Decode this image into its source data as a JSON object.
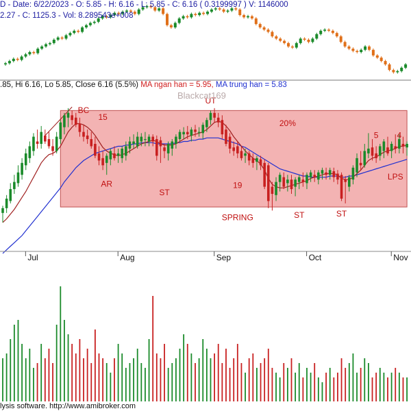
{
  "header": {
    "line1": "D - Date: 6/22/2023 - O: 5.85 - H: 6.16 - L: 5.85 - C: 6.16 ( 0.3199997 ) V: 1146000",
    "line2": "2.27 - C: 1125.3 - Vol: 8.289543e+008",
    "line3_ohlc": ".85, Hi 6.16, Lo 5.85, Close 6.16 (5.5%)",
    "line3_ma_short": "MA ngan han = 5.95,",
    "line3_ma_long": "MA trung han = 5.83"
  },
  "watermark": "Blackcat169",
  "footer": "lysis software. http://www.amibroker.com",
  "colors": {
    "up": "#1a8a2a",
    "down": "#c82020",
    "ma_short": "#a02020",
    "ma_long": "#2030d0",
    "zone": "#f3b3b3",
    "zone_border": "#c05050"
  },
  "chart_data": [
    {
      "type": "line",
      "name": "index-overlay",
      "x": [
        0,
        1,
        2,
        3,
        4,
        5,
        6,
        7,
        8,
        9,
        10,
        11,
        12,
        13,
        14,
        15,
        16,
        17,
        18,
        19,
        20,
        21,
        22,
        23,
        24,
        25,
        26,
        27,
        28,
        29,
        30,
        31,
        32,
        33,
        34,
        35,
        36,
        37,
        38,
        39,
        40,
        41,
        42,
        43,
        44,
        45,
        46,
        47,
        48,
        49,
        50,
        51,
        52,
        53,
        54,
        55,
        56,
        57,
        58,
        59,
        60,
        61,
        62,
        63,
        64,
        65,
        66,
        67,
        68,
        69,
        70,
        71,
        72,
        73,
        74,
        75,
        76,
        77,
        78,
        79,
        80,
        81,
        82,
        83,
        84,
        85,
        86,
        87,
        88,
        89,
        90,
        91,
        92,
        93,
        94,
        95,
        96,
        97,
        98,
        99
      ],
      "values": [
        1084,
        1086,
        1088,
        1087,
        1090,
        1092,
        1094,
        1093,
        1097,
        1099,
        1101,
        1102,
        1105,
        1107,
        1106,
        1109,
        1111,
        1113,
        1112,
        1116,
        1118,
        1120,
        1121,
        1124,
        1126,
        1125,
        1127,
        1129,
        1128,
        1130,
        1131,
        1130,
        1128,
        1132,
        1134,
        1135,
        1134,
        1131,
        1133,
        1128,
        1118,
        1116,
        1120,
        1124,
        1126,
        1125,
        1128,
        1127,
        1129,
        1128,
        1130,
        1132,
        1133,
        1132,
        1130,
        1131,
        1133,
        1132,
        1127,
        1125,
        1126,
        1124,
        1119,
        1116,
        1114,
        1112,
        1108,
        1106,
        1104,
        1102,
        1099,
        1098,
        1102,
        1106,
        1105,
        1103,
        1106,
        1110,
        1113,
        1114,
        1113,
        1111,
        1108,
        1103,
        1099,
        1097,
        1095,
        1094,
        1096,
        1099,
        1096,
        1091,
        1089,
        1086,
        1083,
        1078,
        1076,
        1077,
        1080,
        1083
      ]
    },
    {
      "type": "candlestick",
      "name": "price",
      "x_ticks": [
        "Jul",
        "Aug",
        "Sep",
        "Oct",
        "Nov"
      ],
      "x_tick_index": [
        7,
        31,
        56,
        80,
        102
      ],
      "zone": {
        "from_index": 15,
        "to_index": 105,
        "top": 6.16,
        "bottom": 5.35
      },
      "annotations": [
        {
          "text": "BC",
          "index": 21,
          "price": 6.14
        },
        {
          "text": "15",
          "index": 26,
          "price": 6.08
        },
        {
          "text": "AR",
          "index": 27,
          "price": 5.52
        },
        {
          "text": "ST",
          "index": 42,
          "price": 5.45
        },
        {
          "text": "UT",
          "index": 54,
          "price": 6.22
        },
        {
          "text": "19",
          "index": 61,
          "price": 5.51
        },
        {
          "text": "SPRING",
          "index": 61,
          "price": 5.24
        },
        {
          "text": "20%",
          "index": 74,
          "price": 6.03
        },
        {
          "text": "ST",
          "index": 77,
          "price": 5.26
        },
        {
          "text": "ST",
          "index": 88,
          "price": 5.27
        },
        {
          "text": "5",
          "index": 97,
          "price": 5.93
        },
        {
          "text": "4",
          "index": 103,
          "price": 5.93
        },
        {
          "text": "LPS",
          "index": 102,
          "price": 5.58
        }
      ],
      "open": [
        5.3,
        5.34,
        5.4,
        5.5,
        5.55,
        5.62,
        5.7,
        5.76,
        5.82,
        5.9,
        5.88,
        5.95,
        5.92,
        5.86,
        5.82,
        5.92,
        6.02,
        6.1,
        6.12,
        6.1,
        6.05,
        5.98,
        5.95,
        5.92,
        5.88,
        5.8,
        5.76,
        5.72,
        5.75,
        5.8,
        5.78,
        5.76,
        5.78,
        5.84,
        5.88,
        5.86,
        5.9,
        5.92,
        5.9,
        5.94,
        5.92,
        5.91,
        5.85,
        5.8,
        5.84,
        5.88,
        5.92,
        5.96,
        5.98,
        5.95,
        6.0,
        5.98,
        5.97,
        6.02,
        6.08,
        6.14,
        6.1,
        6.08,
        6.0,
        5.94,
        5.85,
        5.86,
        5.82,
        5.78,
        5.8,
        5.76,
        5.73,
        5.75,
        5.72,
        5.7,
        5.52,
        5.45,
        5.56,
        5.6,
        5.55,
        5.58,
        5.52,
        5.56,
        5.58,
        5.55,
        5.6,
        5.62,
        5.58,
        5.63,
        5.64,
        5.62,
        5.65,
        5.63,
        5.62,
        5.58,
        5.52,
        5.58,
        5.64,
        5.72,
        5.7,
        5.8,
        5.85,
        5.8,
        5.78,
        5.82,
        5.85,
        5.82,
        5.86,
        5.84,
        5.88,
        5.85
      ],
      "high": [
        5.36,
        5.45,
        5.55,
        5.62,
        5.7,
        5.76,
        5.84,
        5.9,
        5.97,
        6.0,
        6.03,
        6.0,
        5.98,
        5.92,
        5.98,
        6.08,
        6.14,
        6.18,
        6.16,
        6.14,
        6.1,
        6.04,
        6.0,
        5.98,
        5.94,
        5.86,
        5.82,
        5.8,
        5.84,
        5.86,
        5.84,
        5.86,
        5.9,
        5.94,
        5.96,
        5.98,
        5.97,
        5.98,
        5.96,
        5.96,
        5.95,
        5.94,
        5.88,
        5.9,
        5.92,
        5.96,
        6.0,
        6.02,
        6.03,
        6.02,
        6.04,
        6.02,
        6.06,
        6.1,
        6.16,
        6.18,
        6.14,
        6.12,
        6.04,
        5.97,
        5.9,
        5.9,
        5.86,
        5.84,
        5.82,
        5.8,
        5.78,
        5.78,
        5.75,
        5.72,
        5.56,
        5.6,
        5.64,
        5.64,
        5.62,
        5.62,
        5.6,
        5.62,
        5.64,
        5.64,
        5.66,
        5.66,
        5.66,
        5.68,
        5.68,
        5.68,
        5.68,
        5.66,
        5.64,
        5.61,
        5.62,
        5.7,
        5.8,
        5.82,
        5.88,
        5.97,
        5.92,
        5.86,
        5.88,
        5.92,
        5.94,
        5.9,
        5.96,
        5.96,
        5.94,
        5.9
      ],
      "low": [
        5.22,
        5.3,
        5.38,
        5.46,
        5.52,
        5.58,
        5.66,
        5.72,
        5.78,
        5.84,
        5.84,
        5.88,
        5.84,
        5.78,
        5.8,
        5.88,
        5.96,
        6.02,
        6.04,
        6.02,
        5.94,
        5.9,
        5.88,
        5.84,
        5.76,
        5.7,
        5.66,
        5.62,
        5.7,
        5.74,
        5.72,
        5.72,
        5.74,
        5.8,
        5.84,
        5.84,
        5.86,
        5.86,
        5.86,
        5.86,
        5.74,
        5.72,
        5.76,
        5.74,
        5.78,
        5.84,
        5.9,
        5.92,
        5.92,
        5.9,
        5.94,
        5.94,
        5.92,
        5.98,
        6.04,
        6.06,
        6.02,
        5.92,
        5.86,
        5.8,
        5.78,
        5.76,
        5.74,
        5.72,
        5.7,
        5.68,
        5.66,
        5.66,
        5.5,
        5.34,
        5.32,
        5.4,
        5.48,
        5.5,
        5.48,
        5.46,
        5.44,
        5.5,
        5.52,
        5.5,
        5.56,
        5.56,
        5.54,
        5.58,
        5.58,
        5.58,
        5.56,
        5.54,
        5.4,
        5.38,
        5.48,
        5.54,
        5.6,
        5.66,
        5.68,
        5.76,
        5.74,
        5.72,
        5.74,
        5.76,
        5.78,
        5.76,
        5.8,
        5.8,
        5.8,
        5.78
      ],
      "close": [
        5.34,
        5.42,
        5.5,
        5.56,
        5.64,
        5.72,
        5.8,
        5.86,
        5.94,
        5.88,
        5.98,
        5.9,
        5.86,
        5.82,
        5.94,
        6.06,
        6.12,
        6.14,
        6.08,
        6.04,
        5.98,
        5.94,
        5.92,
        5.86,
        5.78,
        5.74,
        5.7,
        5.78,
        5.82,
        5.76,
        5.8,
        5.84,
        5.86,
        5.9,
        5.9,
        5.94,
        5.94,
        5.92,
        5.94,
        5.9,
        5.78,
        5.86,
        5.82,
        5.88,
        5.9,
        5.94,
        5.98,
        5.98,
        5.96,
        6.0,
        5.98,
        5.98,
        6.04,
        6.08,
        6.14,
        6.1,
        6.06,
        5.96,
        5.88,
        5.84,
        5.82,
        5.8,
        5.76,
        5.8,
        5.74,
        5.72,
        5.76,
        5.7,
        5.52,
        5.4,
        5.46,
        5.56,
        5.62,
        5.52,
        5.58,
        5.5,
        5.58,
        5.6,
        5.56,
        5.62,
        5.64,
        5.6,
        5.64,
        5.66,
        5.62,
        5.66,
        5.6,
        5.58,
        5.42,
        5.56,
        5.6,
        5.68,
        5.76,
        5.7,
        5.82,
        5.84,
        5.78,
        5.76,
        5.86,
        5.9,
        5.8,
        5.88,
        5.84,
        5.92,
        5.86,
        5.88
      ]
    },
    {
      "type": "line",
      "name": "ma-short",
      "values": [
        5.22,
        5.25,
        5.29,
        5.33,
        5.38,
        5.43,
        5.48,
        5.54,
        5.6,
        5.66,
        5.72,
        5.76,
        5.79,
        5.8,
        5.82,
        5.86,
        5.92,
        5.98,
        6.02,
        6.05,
        6.05,
        6.04,
        6.02,
        5.99,
        5.95,
        5.9,
        5.85,
        5.82,
        5.8,
        5.79,
        5.78,
        5.79,
        5.8,
        5.82,
        5.84,
        5.86,
        5.88,
        5.89,
        5.9,
        5.91,
        5.9,
        5.88,
        5.87,
        5.87,
        5.87,
        5.88,
        5.9,
        5.92,
        5.94,
        5.95,
        5.96,
        5.97,
        5.98,
        6.0,
        6.03,
        6.06,
        6.07,
        6.06,
        6.03,
        5.99,
        5.94,
        5.9,
        5.86,
        5.82,
        5.79,
        5.76,
        5.74,
        5.71,
        5.66,
        5.59,
        5.54,
        5.52,
        5.51,
        5.51,
        5.52,
        5.53,
        5.54,
        5.55,
        5.56,
        5.57,
        5.59,
        5.6,
        5.61,
        5.62,
        5.63,
        5.63,
        5.63,
        5.62,
        5.59,
        5.58,
        5.58,
        5.6,
        5.63,
        5.66,
        5.7,
        5.74,
        5.76,
        5.77,
        5.79,
        5.81,
        5.82,
        5.83,
        5.84,
        5.86,
        5.86,
        5.87
      ]
    },
    {
      "type": "line",
      "name": "ma-long",
      "values": [
        4.96,
        4.99,
        5.02,
        5.05,
        5.08,
        5.11,
        5.15,
        5.19,
        5.23,
        5.27,
        5.31,
        5.35,
        5.39,
        5.43,
        5.47,
        5.51,
        5.56,
        5.6,
        5.64,
        5.68,
        5.71,
        5.74,
        5.76,
        5.78,
        5.8,
        5.81,
        5.82,
        5.83,
        5.84,
        5.85,
        5.86,
        5.86,
        5.87,
        5.87,
        5.88,
        5.88,
        5.89,
        5.89,
        5.89,
        5.89,
        5.88,
        5.88,
        5.88,
        5.88,
        5.88,
        5.89,
        5.89,
        5.9,
        5.9,
        5.91,
        5.91,
        5.92,
        5.92,
        5.93,
        5.93,
        5.93,
        5.93,
        5.92,
        5.91,
        5.9,
        5.89,
        5.88,
        5.86,
        5.85,
        5.83,
        5.81,
        5.79,
        5.77,
        5.75,
        5.73,
        5.71,
        5.69,
        5.67,
        5.66,
        5.65,
        5.64,
        5.63,
        5.62,
        5.61,
        5.61,
        5.6,
        5.6,
        5.6,
        5.6,
        5.6,
        5.61,
        5.61,
        5.61,
        5.6,
        5.6,
        5.61,
        5.61,
        5.62,
        5.63,
        5.64,
        5.65,
        5.66,
        5.67,
        5.68,
        5.69,
        5.7,
        5.71,
        5.72,
        5.73,
        5.74,
        5.75
      ]
    },
    {
      "type": "bar",
      "name": "volume",
      "values": [
        0.9,
        1.0,
        1.3,
        1.6,
        1.7,
        1.2,
        0.9,
        1.1,
        0.7,
        0.8,
        1.2,
        0.9,
        1.1,
        0.8,
        1.6,
        2.4,
        1.7,
        1.4,
        1.2,
        1.0,
        1.3,
        0.9,
        1.1,
        0.8,
        1.5,
        1.0,
        0.9,
        0.8,
        0.6,
        0.9,
        1.2,
        1.0,
        0.7,
        0.8,
        0.9,
        1.1,
        0.8,
        0.7,
        1.3,
        2.2,
        1.0,
        0.9,
        1.2,
        0.7,
        0.8,
        0.9,
        1.1,
        1.4,
        1.2,
        1.0,
        0.8,
        0.9,
        1.3,
        1.1,
        0.9,
        1.0,
        1.2,
        0.8,
        1.1,
        0.7,
        0.9,
        1.2,
        0.8,
        0.6,
        0.9,
        1.0,
        0.7,
        0.8,
        0.9,
        1.1,
        0.7,
        0.6,
        0.5,
        0.8,
        0.7,
        0.9,
        0.6,
        0.8,
        0.5,
        0.7,
        0.6,
        0.8,
        0.5,
        0.4,
        0.6,
        0.7,
        0.5,
        0.6,
        0.9,
        0.7,
        0.8,
        1.0,
        0.6,
        0.7,
        0.9,
        0.8,
        0.5,
        0.6,
        0.7,
        0.6,
        0.5,
        0.6,
        0.7,
        0.6,
        0.5,
        0.5
      ]
    }
  ]
}
